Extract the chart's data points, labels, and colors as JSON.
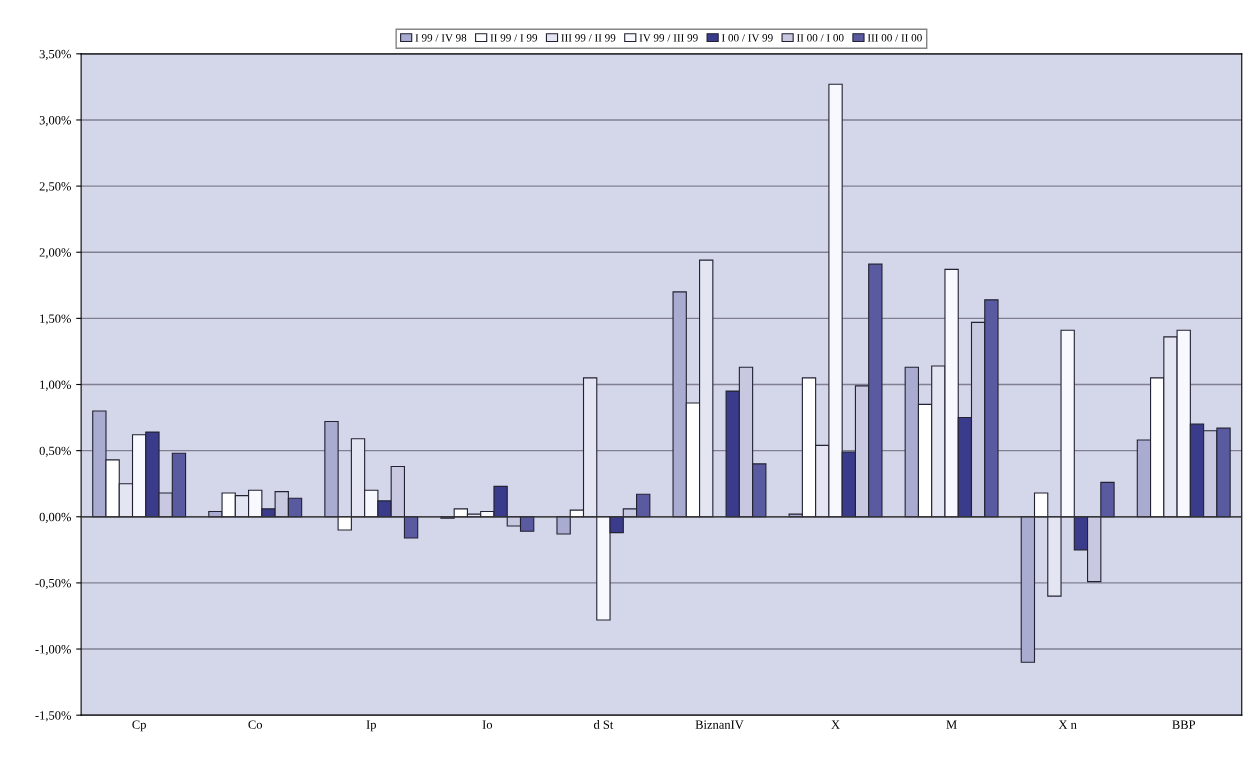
{
  "chart_data": {
    "type": "bar",
    "categories": [
      "Cp",
      "Co",
      "Ip",
      "Io",
      "d St",
      "BiznanIV",
      "X",
      "M",
      "X n",
      "BBP"
    ],
    "series": [
      {
        "name": "I 99 / IV 98",
        "color": "#a9abd0",
        "values": [
          0.8,
          0.04,
          0.72,
          -0.01,
          -0.13,
          1.7,
          0.02,
          1.13,
          -1.1,
          0.58
        ]
      },
      {
        "name": "II 99 / I 99",
        "color": "#ffffff",
        "values": [
          0.43,
          0.18,
          -0.1,
          0.06,
          0.05,
          0.86,
          1.05,
          0.85,
          0.18,
          1.05
        ]
      },
      {
        "name": "III 99 / II 99",
        "color": "#e4e5f2",
        "values": [
          0.25,
          0.16,
          0.59,
          0.02,
          1.05,
          1.94,
          0.54,
          1.14,
          -0.6,
          1.36
        ]
      },
      {
        "name": "IV 99 / III 99",
        "color": "#f8f8ff",
        "values": [
          0.62,
          0.2,
          0.2,
          0.04,
          -0.78,
          null,
          3.27,
          1.87,
          1.41,
          1.41
        ]
      },
      {
        "name": "I 00 / IV 99",
        "color": "#3b3b8c",
        "values": [
          0.64,
          0.06,
          0.12,
          0.23,
          -0.12,
          0.95,
          0.49,
          0.75,
          -0.25,
          0.7
        ]
      },
      {
        "name": "II 00 / I 00",
        "color": "#c8c9e0",
        "values": [
          0.18,
          0.19,
          0.38,
          -0.07,
          0.06,
          1.13,
          0.99,
          1.47,
          -0.49,
          0.65
        ]
      },
      {
        "name": "III 00 / II 00",
        "color": "#5a5aa0",
        "values": [
          0.48,
          0.14,
          -0.16,
          -0.11,
          0.17,
          0.4,
          1.91,
          1.64,
          0.26,
          0.67
        ]
      }
    ],
    "ylim": [
      -1.5,
      3.5
    ],
    "yticks": [
      {
        "value": -1.5,
        "label": "-1,50%"
      },
      {
        "value": -1.0,
        "label": "-1,00%"
      },
      {
        "value": -0.5,
        "label": "-0,50%"
      },
      {
        "value": 0,
        "label": "0,00%"
      },
      {
        "value": 0.5,
        "label": "0,50%"
      },
      {
        "value": 1.0,
        "label": "1,00%"
      },
      {
        "value": 1.5,
        "label": "1,50%"
      },
      {
        "value": 2.0,
        "label": "2,00%"
      },
      {
        "value": 2.5,
        "label": "2,50%"
      },
      {
        "value": 3.0,
        "label": "3,00%"
      },
      {
        "value": 3.5,
        "label": "3,50%"
      }
    ],
    "grid": "y",
    "legend": "top"
  }
}
